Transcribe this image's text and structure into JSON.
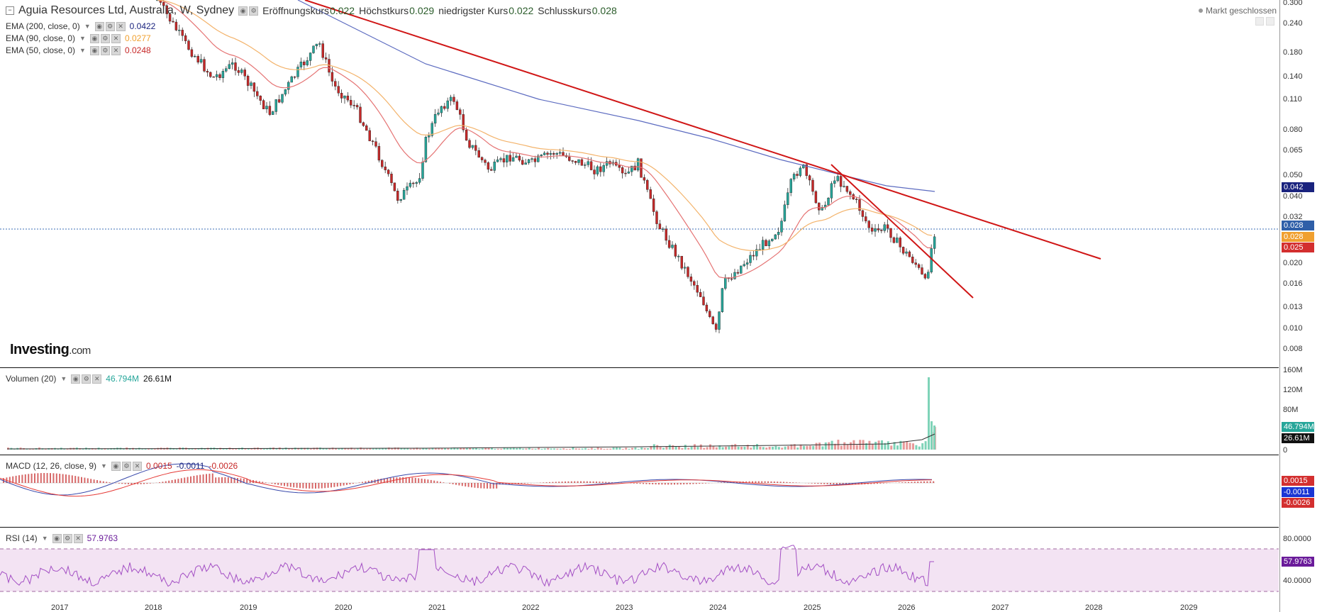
{
  "header": {
    "title": "Aguia Resources Ltd, Australia, W, Sydney",
    "open_label": "Eröffnungskurs",
    "open_value": "0.022",
    "high_label": "Höchstkurs",
    "high_value": "0.029",
    "low_label": "niedrigster Kurs",
    "low_value": "0.022",
    "close_label": "Schlusskurs",
    "close_value": "0.028",
    "market_status": "Markt geschlossen"
  },
  "indicators": [
    {
      "label": "EMA (200, close, 0)",
      "value": "0.0422",
      "color": "#1a237e"
    },
    {
      "label": "EMA (90, close, 0)",
      "value": "0.0277",
      "color": "#f0a030"
    },
    {
      "label": "EMA (50, close, 0)",
      "value": "0.0248",
      "color": "#c62828"
    }
  ],
  "volume_pane": {
    "label": "Volumen (20)",
    "value1": "46.794M",
    "value2": "26.61M"
  },
  "macd_pane": {
    "label": "MACD (12, 26, close, 9)",
    "value1": "0.0015",
    "value2": "-0.0011",
    "value3": "-0.0026"
  },
  "rsi_pane": {
    "label": "RSI (14)",
    "value": "57.9763"
  },
  "brand": {
    "main": "Investing",
    "suffix": ".com"
  },
  "price_axis_ticks": [
    "0.300",
    "0.240",
    "0.180",
    "0.140",
    "0.110",
    "0.080",
    "0.065",
    "0.050",
    "0.040",
    "0.032",
    "0.020",
    "0.016",
    "0.013",
    "0.010",
    "0.008"
  ],
  "price_badges": [
    {
      "text": "0.042",
      "color": "#1a237e"
    },
    {
      "text": "0.028",
      "color": "#2f5fa8"
    },
    {
      "text": "0.028",
      "color": "#f0a030"
    },
    {
      "text": "0.025",
      "color": "#d32f2f"
    }
  ],
  "volume_axis_ticks": [
    "160M",
    "120M",
    "80M",
    "0"
  ],
  "volume_badges": [
    {
      "text": "46.794M",
      "color": "#26a69a"
    },
    {
      "text": "26.61M",
      "color": "#111111"
    }
  ],
  "macd_badges": [
    {
      "text": "0.0015",
      "color": "#d32f2f"
    },
    {
      "text": "-0.0011",
      "color": "#1a35d4"
    },
    {
      "text": "-0.0026",
      "color": "#d32f2f"
    }
  ],
  "rsi_axis_ticks": [
    "80.0000",
    "40.0000"
  ],
  "rsi_badge": {
    "text": "57.9763",
    "color": "#6a1b9a"
  },
  "x_axis": [
    "2017",
    "2018",
    "2019",
    "2020",
    "2021",
    "2022",
    "2023",
    "2024",
    "2025",
    "2026",
    "2027",
    "2028",
    "2029"
  ],
  "colors": {
    "up": "#26a69a",
    "down": "#c62828",
    "ema200": "#5c6bc0",
    "ema90": "#f3b36b",
    "ema50": "#e57373",
    "trend": "#d01616",
    "rsi": "#a34fc4",
    "rsi_bg": "#f3e3f3"
  }
}
